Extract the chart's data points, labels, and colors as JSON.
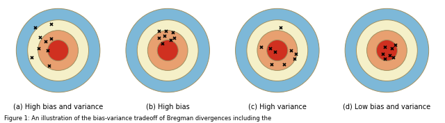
{
  "figures": [
    {
      "label": "(a) High bias and variance",
      "radii": [
        0.48,
        0.35,
        0.23,
        0.12
      ],
      "colors": [
        "#7db8d8",
        "#f5f0c8",
        "#e8a070",
        "#d03020"
      ],
      "points": [
        [
          -0.26,
          0.26
        ],
        [
          -0.08,
          0.3
        ],
        [
          -0.2,
          0.15
        ],
        [
          -0.14,
          0.1
        ],
        [
          -0.08,
          0.13
        ],
        [
          -0.22,
          0.02
        ],
        [
          -0.12,
          0.0
        ],
        [
          -0.3,
          -0.08
        ],
        [
          -0.1,
          -0.18
        ]
      ]
    },
    {
      "label": "(b) High bias",
      "radii": [
        0.48,
        0.35,
        0.23,
        0.12
      ],
      "colors": [
        "#7db8d8",
        "#f5f0c8",
        "#e8a070",
        "#d03020"
      ],
      "points": [
        [
          -0.1,
          0.22
        ],
        [
          -0.02,
          0.22
        ],
        [
          0.06,
          0.2
        ],
        [
          -0.1,
          0.14
        ],
        [
          -0.03,
          0.16
        ],
        [
          0.04,
          0.12
        ],
        [
          -0.06,
          0.08
        ],
        [
          0.08,
          0.14
        ]
      ]
    },
    {
      "label": "(c) High variance",
      "radii": [
        0.48,
        0.35,
        0.23,
        0.12
      ],
      "colors": [
        "#7db8d8",
        "#f5f0c8",
        "#e8a070",
        "#d03020"
      ],
      "points": [
        [
          0.04,
          0.26
        ],
        [
          -0.18,
          0.04
        ],
        [
          -0.08,
          0.02
        ],
        [
          -0.02,
          -0.02
        ],
        [
          0.16,
          0.0
        ],
        [
          -0.06,
          -0.16
        ],
        [
          0.08,
          -0.16
        ],
        [
          0.2,
          -0.1
        ],
        [
          0.22,
          -0.04
        ]
      ]
    },
    {
      "label": "(d) Low bias and variance",
      "radii": [
        0.48,
        0.35,
        0.23,
        0.12
      ],
      "colors": [
        "#7db8d8",
        "#f5f0c8",
        "#e8a070",
        "#d03020"
      ],
      "points": [
        [
          0.1,
          0.06
        ],
        [
          -0.02,
          0.04
        ],
        [
          0.06,
          0.02
        ],
        [
          -0.04,
          -0.04
        ],
        [
          0.04,
          -0.06
        ],
        [
          -0.02,
          -0.1
        ],
        [
          0.08,
          -0.08
        ]
      ]
    }
  ],
  "figsize": [
    6.4,
    1.77
  ],
  "dpi": 100,
  "bg_color": "#ffffff",
  "circle_edge_color": "#a09060",
  "circle_linewidth": 0.7,
  "marker": "x",
  "marker_color": "black",
  "marker_size": 3.5,
  "marker_linewidth": 1.2,
  "label_fontsize": 7.0,
  "caption_fontsize": 6.0,
  "caption": "Figure 1: An illustration of the bias-variance tradeoff of Bregman divergences including the"
}
